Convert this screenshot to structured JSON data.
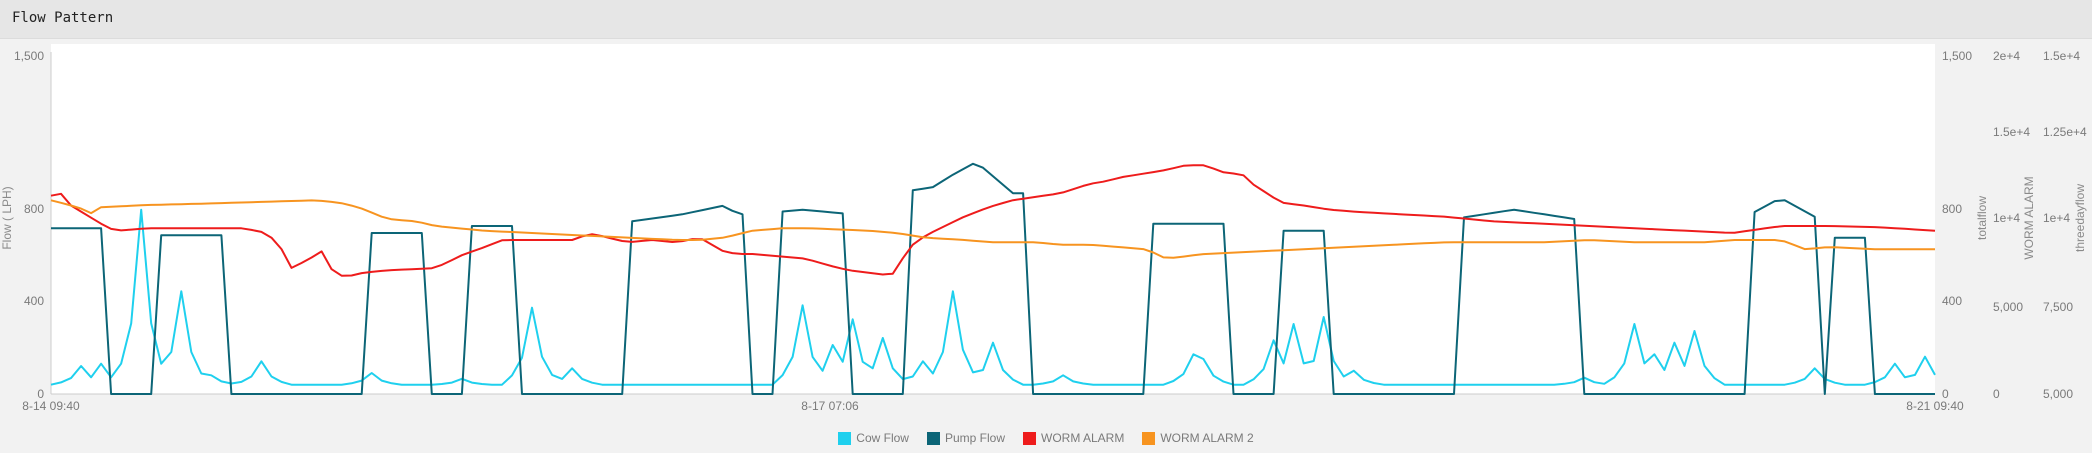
{
  "panel": {
    "title": "Flow Pattern"
  },
  "chart_data": {
    "type": "line",
    "x_ticks": [
      "8-14 09:40",
      "8-17 07:06",
      "8-21 09:40"
    ],
    "axes": {
      "left": {
        "label": "Flow ( LPH)",
        "ticks": [
          "1,500",
          "800",
          "400",
          "0"
        ],
        "ylim": [
          0,
          1500
        ]
      },
      "right1": {
        "label": "totalflow",
        "ticks": [
          "1,500",
          "800",
          "400",
          "0"
        ],
        "ylim": [
          0,
          1500
        ]
      },
      "right2": {
        "label": "WORM ALARM",
        "ticks": [
          "2e+4",
          "1.5e+4",
          "1e+4",
          "5,000",
          "0"
        ],
        "ylim": [
          0,
          20000
        ]
      },
      "right3": {
        "label": "threedayflow",
        "ticks": [
          "1.5e+4",
          "1.25e+4",
          "1e+4",
          "7,500",
          "5,000"
        ],
        "ylim": [
          5000,
          15000
        ]
      }
    },
    "grid": false,
    "legend_placement": "bottom-center",
    "x_count": 189,
    "series": [
      {
        "name": "Cow Flow",
        "color": "#1fd0ee",
        "baseline": 40,
        "spikes": [
          [
            3,
            120
          ],
          [
            5,
            130
          ],
          [
            9,
            790
          ],
          [
            10,
            160
          ],
          [
            13,
            440
          ],
          [
            16,
            80
          ],
          [
            21,
            140
          ],
          [
            32,
            90
          ],
          [
            41,
            65
          ],
          [
            48,
            370
          ],
          [
            49,
            160
          ],
          [
            52,
            110
          ],
          [
            75,
            380
          ],
          [
            78,
            210
          ],
          [
            80,
            320
          ],
          [
            83,
            240
          ],
          [
            87,
            140
          ],
          [
            90,
            440
          ],
          [
            91,
            190
          ],
          [
            94,
            220
          ],
          [
            101,
            80
          ],
          [
            114,
            170
          ],
          [
            115,
            150
          ],
          [
            122,
            230
          ],
          [
            124,
            300
          ],
          [
            127,
            330
          ],
          [
            130,
            100
          ],
          [
            153,
            70
          ],
          [
            158,
            300
          ],
          [
            160,
            170
          ],
          [
            162,
            220
          ],
          [
            164,
            270
          ],
          [
            176,
            110
          ],
          [
            184,
            130
          ],
          [
            187,
            160
          ]
        ]
      },
      {
        "name": "Pump Flow",
        "color": "#0c6577",
        "segments": [
          [
            0,
            5,
            710
          ],
          [
            11,
            17,
            680
          ],
          [
            32,
            37,
            690
          ],
          [
            42,
            46,
            720
          ],
          [
            58,
            69,
            740
          ],
          [
            73,
            79,
            770
          ],
          [
            86,
            97,
            860
          ],
          [
            110,
            117,
            730
          ],
          [
            123,
            127,
            700
          ],
          [
            141,
            152,
            750
          ],
          [
            170,
            176,
            760
          ],
          [
            178,
            181,
            670
          ],
          [
            193,
            197,
            680
          ]
        ],
        "bumps": [
          [
            63,
            4,
            30
          ],
          [
            67,
            3,
            60
          ],
          [
            75,
            4,
            20
          ],
          [
            90,
            5,
            40
          ],
          [
            92,
            3,
            80
          ],
          [
            93,
            2,
            30
          ],
          [
            146,
            5,
            40
          ],
          [
            172,
            3,
            40
          ],
          [
            173,
            2,
            40
          ]
        ]
      },
      {
        "name": "WORM ALARM",
        "color": "#ee1c1c",
        "points": [
          [
            0,
            850
          ],
          [
            1,
            830
          ],
          [
            2,
            860
          ],
          [
            4,
            810
          ],
          [
            8,
            760
          ],
          [
            12,
            710
          ],
          [
            14,
            700
          ],
          [
            20,
            710
          ],
          [
            40,
            710
          ],
          [
            45,
            690
          ],
          [
            48,
            620
          ],
          [
            50,
            540
          ],
          [
            53,
            570
          ],
          [
            57,
            620
          ],
          [
            58,
            540
          ],
          [
            61,
            500
          ],
          [
            65,
            520
          ],
          [
            70,
            530
          ],
          [
            80,
            540
          ],
          [
            86,
            600
          ],
          [
            89,
            620
          ],
          [
            94,
            660
          ],
          [
            100,
            660
          ],
          [
            110,
            660
          ],
          [
            111,
            690
          ],
          [
            114,
            680
          ],
          [
            120,
            650
          ],
          [
            125,
            660
          ],
          [
            130,
            650
          ],
          [
            135,
            670
          ],
          [
            140,
            610
          ],
          [
            143,
            600
          ],
          [
            146,
            600
          ],
          [
            157,
            580
          ],
          [
            162,
            550
          ],
          [
            166,
            530
          ],
          [
            170,
            520
          ],
          [
            174,
            510
          ],
          [
            176,
            520
          ],
          [
            178,
            620
          ],
          [
            182,
            680
          ],
          [
            186,
            720
          ],
          [
            190,
            760
          ],
          [
            195,
            800
          ],
          [
            200,
            830
          ],
          [
            210,
            860
          ],
          [
            216,
            900
          ],
          [
            219,
            910
          ],
          [
            223,
            930
          ],
          [
            229,
            950
          ],
          [
            232,
            960
          ],
          [
            236,
            980
          ],
          [
            240,
            980
          ],
          [
            244,
            950
          ],
          [
            248,
            940
          ],
          [
            250,
            900
          ],
          [
            253,
            860
          ],
          [
            256,
            820
          ],
          [
            260,
            810
          ],
          [
            266,
            790
          ],
          [
            272,
            780
          ],
          [
            290,
            760
          ],
          [
            300,
            740
          ],
          [
            320,
            720
          ],
          [
            340,
            700
          ],
          [
            350,
            690
          ],
          [
            360,
            720
          ],
          [
            370,
            720
          ],
          [
            380,
            715
          ],
          [
            392,
            700
          ]
        ]
      },
      {
        "name": "WORM ALARM 2",
        "color": "#f79420",
        "points": [
          [
            0,
            830
          ],
          [
            3,
            815
          ],
          [
            7,
            790
          ],
          [
            8,
            770
          ],
          [
            10,
            800
          ],
          [
            20,
            810
          ],
          [
            30,
            815
          ],
          [
            55,
            830
          ],
          [
            60,
            820
          ],
          [
            64,
            800
          ],
          [
            70,
            750
          ],
          [
            76,
            740
          ],
          [
            80,
            720
          ],
          [
            90,
            700
          ],
          [
            100,
            690
          ],
          [
            110,
            680
          ],
          [
            120,
            670
          ],
          [
            130,
            660
          ],
          [
            135,
            660
          ],
          [
            140,
            670
          ],
          [
            146,
            700
          ],
          [
            152,
            710
          ],
          [
            158,
            710
          ],
          [
            164,
            705
          ],
          [
            170,
            700
          ],
          [
            176,
            690
          ],
          [
            182,
            670
          ],
          [
            190,
            660
          ],
          [
            196,
            650
          ],
          [
            205,
            650
          ],
          [
            210,
            640
          ],
          [
            216,
            640
          ],
          [
            222,
            630
          ],
          [
            228,
            620
          ],
          [
            232,
            580
          ],
          [
            236,
            590
          ],
          [
            240,
            600
          ],
          [
            250,
            610
          ],
          [
            260,
            620
          ],
          [
            270,
            630
          ],
          [
            280,
            640
          ],
          [
            290,
            650
          ],
          [
            300,
            650
          ],
          [
            310,
            650
          ],
          [
            320,
            660
          ],
          [
            330,
            650
          ],
          [
            340,
            650
          ],
          [
            344,
            650
          ],
          [
            350,
            660
          ],
          [
            360,
            660
          ],
          [
            365,
            620
          ],
          [
            370,
            630
          ],
          [
            380,
            620
          ],
          [
            392,
            620
          ]
        ]
      }
    ]
  }
}
